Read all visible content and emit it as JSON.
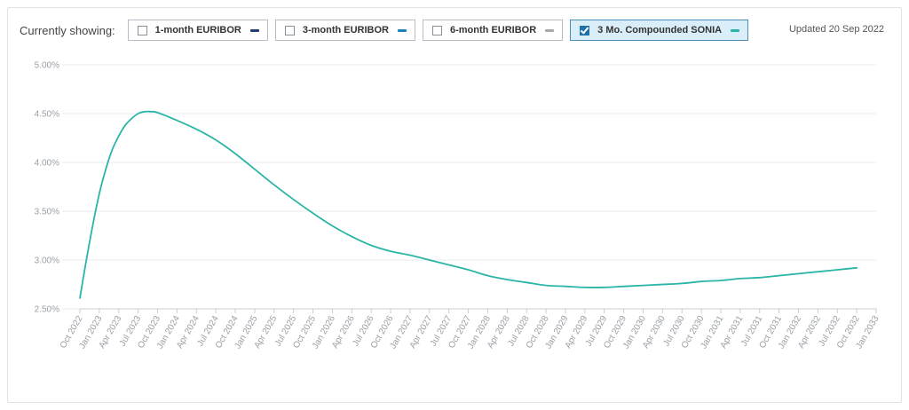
{
  "toolbar": {
    "label": "Currently showing:",
    "updated": "Updated 20 Sep 2022",
    "series_toggles": [
      {
        "label": "1-month EURIBOR",
        "checked": false,
        "color": "#1f3f6e"
      },
      {
        "label": "3-month EURIBOR",
        "checked": false,
        "color": "#1b7fc0"
      },
      {
        "label": "6-month EURIBOR",
        "checked": false,
        "color": "#a9a9a9"
      },
      {
        "label": "3 Mo. Compounded SONIA",
        "checked": true,
        "color": "#2bb5a8"
      }
    ]
  },
  "chart_data": {
    "type": "line",
    "ylim": [
      2.5,
      5.0
    ],
    "y_ticks": [
      "5.00%",
      "4.50%",
      "4.00%",
      "3.50%",
      "3.00%",
      "2.50%"
    ],
    "y_tick_values": [
      5.0,
      4.5,
      4.0,
      3.5,
      3.0,
      2.5
    ],
    "categories": [
      "Oct 2022",
      "Jan 2023",
      "Apr 2023",
      "Jul 2023",
      "Oct 2023",
      "Jan 2024",
      "Apr 2024",
      "Jul 2024",
      "Oct 2024",
      "Jan 2025",
      "Apr 2025",
      "Jul 2025",
      "Oct 2025",
      "Jan 2026",
      "Apr 2026",
      "Jul 2026",
      "Oct 2026",
      "Jan 2027",
      "Apr 2027",
      "Jul 2027",
      "Oct 2027",
      "Jan 2028",
      "Apr 2028",
      "Jul 2028",
      "Oct 2028",
      "Jan 2029",
      "Apr 2029",
      "Jul 2029",
      "Oct 2029",
      "Jan 2030",
      "Apr 2030",
      "Jul 2030",
      "Oct 2030",
      "Jan 2031",
      "Apr 2031",
      "Jul 2031",
      "Oct 2031",
      "Jan 2032",
      "Apr 2032",
      "Jul 2032",
      "Oct 2032",
      "Jan 2033"
    ],
    "grid": true,
    "series": [
      {
        "name": "3 Mo. Compounded SONIA",
        "color": "#2bb5a8",
        "x": [
          "Oct 2022",
          "Nov 2022",
          "Dec 2022",
          "Jan 2023",
          "Feb 2023",
          "Mar 2023",
          "Apr 2023",
          "May 2023",
          "Jun 2023",
          "Jul 2023",
          "Aug 2023",
          "Sep 2023",
          "Oct 2023",
          "Jan 2024",
          "Apr 2024",
          "Jul 2024",
          "Oct 2024",
          "Jan 2025",
          "Apr 2025",
          "Jul 2025",
          "Oct 2025",
          "Jan 2026",
          "Apr 2026",
          "Jul 2026",
          "Oct 2026",
          "Jan 2027",
          "Apr 2027",
          "Jul 2027",
          "Oct 2027",
          "Jan 2028",
          "Apr 2028",
          "Jul 2028",
          "Oct 2028",
          "Jan 2029",
          "Apr 2029",
          "Jul 2029",
          "Oct 2029",
          "Jan 2030",
          "Apr 2030",
          "Jul 2030",
          "Oct 2030",
          "Jan 2031",
          "Apr 2031",
          "Jul 2031",
          "Oct 2031",
          "Jan 2032",
          "Apr 2032",
          "Jul 2032",
          "Oct 2032"
        ],
        "values": [
          2.61,
          3.0,
          3.36,
          3.68,
          3.93,
          4.13,
          4.27,
          4.38,
          4.45,
          4.5,
          4.52,
          4.52,
          4.51,
          4.43,
          4.34,
          4.23,
          4.09,
          3.93,
          3.77,
          3.62,
          3.48,
          3.35,
          3.24,
          3.15,
          3.09,
          3.05,
          3.0,
          2.95,
          2.9,
          2.84,
          2.8,
          2.77,
          2.74,
          2.73,
          2.72,
          2.72,
          2.73,
          2.74,
          2.75,
          2.76,
          2.78,
          2.79,
          2.81,
          2.82,
          2.84,
          2.86,
          2.88,
          2.9,
          2.92
        ]
      }
    ]
  }
}
